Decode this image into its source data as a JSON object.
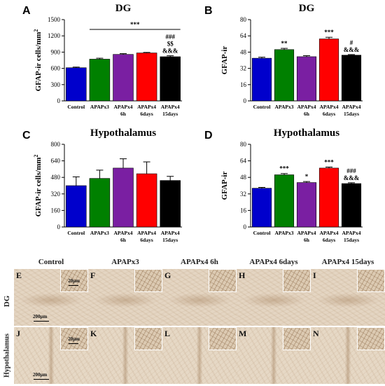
{
  "chart_data": [
    {
      "type": "bar",
      "letter": "A",
      "title": "DG",
      "ylabel": "GFAP-ir cells/mm",
      "ylabel_sup": "2",
      "ylim": [
        0,
        1500
      ],
      "yticks": [
        0,
        300,
        600,
        900,
        1200,
        1500
      ],
      "categories": [
        [
          "Control"
        ],
        [
          "APAPx3"
        ],
        [
          "APAPx4",
          "6h"
        ],
        [
          "APAPx4",
          "6days"
        ],
        [
          "APAPx4",
          "15days"
        ]
      ],
      "values": [
        612,
        770,
        858,
        885,
        815
      ],
      "errors": [
        12,
        18,
        14,
        10,
        18
      ],
      "colors": [
        "#0000cc",
        "#008000",
        "#7a1fa2",
        "#ff0000",
        "#000000"
      ],
      "significance": [
        [],
        [],
        [],
        [],
        [
          "###",
          "$$",
          "&&&"
        ]
      ],
      "bracket": {
        "label": "***",
        "from": 1,
        "to": 4
      }
    },
    {
      "type": "bar",
      "letter": "B",
      "title": "DG",
      "ylabel": "GFAP-ir",
      "ylabel_sup": "",
      "ylim": [
        0,
        80
      ],
      "yticks": [
        0,
        16,
        32,
        48,
        64,
        80
      ],
      "categories": [
        [
          "Control"
        ],
        [
          "APAPx3"
        ],
        [
          "APAPx4",
          "6h"
        ],
        [
          "APAPx4",
          "6days"
        ],
        [
          "APAPx4",
          "15days"
        ]
      ],
      "values": [
        42,
        50.5,
        43.5,
        61,
        45
      ],
      "errors": [
        1.0,
        1.2,
        1.0,
        1.6,
        0.6
      ],
      "colors": [
        "#0000cc",
        "#008000",
        "#7a1fa2",
        "#ff0000",
        "#000000"
      ],
      "significance": [
        [],
        [
          "**"
        ],
        [],
        [
          "***"
        ],
        [
          "#",
          "&&&"
        ]
      ],
      "bracket": null
    },
    {
      "type": "bar",
      "letter": "C",
      "title": "Hypothalamus",
      "ylabel": "GFAP-ir cells/mm",
      "ylabel_sup": "2",
      "ylim": [
        0,
        800
      ],
      "yticks": [
        0,
        160,
        320,
        480,
        640,
        800
      ],
      "categories": [
        [
          "Control"
        ],
        [
          "APAPx3"
        ],
        [
          "APAPx4",
          "6h"
        ],
        [
          "APAPx4",
          "6days"
        ],
        [
          "APAPx4",
          "15days"
        ]
      ],
      "values": [
        400,
        470,
        570,
        515,
        450
      ],
      "errors": [
        85,
        80,
        90,
        115,
        40
      ],
      "colors": [
        "#0000cc",
        "#008000",
        "#7a1fa2",
        "#ff0000",
        "#000000"
      ],
      "significance": [
        [],
        [],
        [],
        [],
        []
      ],
      "bracket": null
    },
    {
      "type": "bar",
      "letter": "D",
      "title": "Hypothalamus",
      "ylabel": "GFAP-ir",
      "ylabel_sup": "",
      "ylim": [
        0,
        80
      ],
      "yticks": [
        0,
        16,
        32,
        48,
        64,
        80
      ],
      "categories": [
        [
          "Control"
        ],
        [
          "APAPx3"
        ],
        [
          "APAPx4",
          "6h"
        ],
        [
          "APAPx4",
          "6days"
        ],
        [
          "APAPx4",
          "15days"
        ]
      ],
      "values": [
        37.5,
        50.5,
        43,
        57,
        42
      ],
      "errors": [
        0.8,
        1.2,
        1.0,
        1.0,
        0.8
      ],
      "colors": [
        "#0000cc",
        "#008000",
        "#7a1fa2",
        "#ff0000",
        "#000000"
      ],
      "significance": [
        [],
        [
          "***"
        ],
        [
          "*"
        ],
        [
          "***"
        ],
        [
          "###",
          "&&&"
        ]
      ],
      "bracket": null
    }
  ],
  "micrographs": {
    "columns": [
      "Control",
      "APAPx3",
      "APAPx4 6h",
      "APAPx4 6days",
      "APAPx4 15days"
    ],
    "rows": [
      "DG",
      "Hypothalamus"
    ],
    "panel_letters": [
      [
        "E",
        "F",
        "G",
        "H",
        "I"
      ],
      [
        "J",
        "K",
        "L",
        "M",
        "N"
      ]
    ],
    "inset_scale": "20μm",
    "main_scale": "200μm"
  }
}
